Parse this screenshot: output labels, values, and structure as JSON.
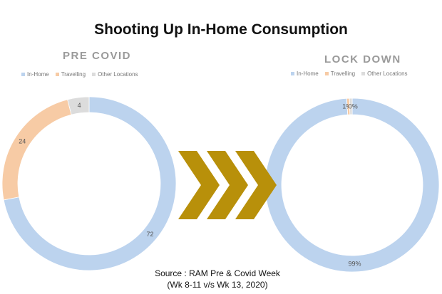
{
  "title": "Shooting Up In-Home Consumption",
  "source": {
    "line1": "Source : RAM Pre & Covid Week",
    "line2": "(Wk 8-11 v/s Wk 13, 2020)"
  },
  "colors": {
    "in_home": "#bcd3ee",
    "travelling": "#f7cba5",
    "other": "#dcdcdc",
    "arrow": "#b8900a"
  },
  "chart_data": [
    {
      "type": "pie",
      "title": "PRE COVID",
      "legend_position": "top",
      "categories": [
        "In-Home",
        "Travelling",
        "Other Locations"
      ],
      "values": [
        72,
        24,
        4
      ],
      "labels": [
        "72",
        "24",
        "4"
      ]
    },
    {
      "type": "pie",
      "title": "LOCK DOWN",
      "legend_position": "top",
      "categories": [
        "In-Home",
        "Travelling",
        "Other Locations"
      ],
      "values": [
        99,
        0.5,
        0.5
      ],
      "labels": [
        "99%",
        "1%",
        "0%"
      ]
    }
  ]
}
